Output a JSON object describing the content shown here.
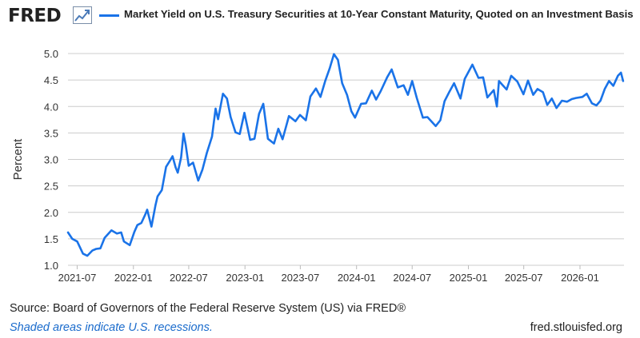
{
  "header": {
    "logo_text": "FRED",
    "logo_icon": "line-chart-icon",
    "legend_label": "Market Yield on U.S. Treasury Securities at 10-Year Constant Maturity, Quoted on an Investment Basis"
  },
  "colors": {
    "series": "#1a73e8",
    "grid": "#cccccc",
    "plot_background": "#ffffff",
    "recession_note": "#1a6bcc"
  },
  "footer": {
    "source_text": "Source: Board of Governors of the Federal Reserve System (US) via FRED®",
    "recession_note": "Shaded areas indicate U.S. recessions.",
    "site": "fred.stlouisfed.org"
  },
  "chart_data": {
    "type": "line",
    "title": "",
    "xlabel": "",
    "ylabel": "Percent",
    "xlim": [
      "2021-06-01",
      "2026-05-25"
    ],
    "ylim": [
      1.0,
      5.0
    ],
    "yticks": [
      1.0,
      1.5,
      2.0,
      2.5,
      3.0,
      3.5,
      4.0,
      4.5,
      5.0
    ],
    "ytick_labels": [
      "1.0",
      "1.5",
      "2.0",
      "2.5",
      "3.0",
      "3.5",
      "4.0",
      "4.5",
      "5.0"
    ],
    "xticks": [
      "2021-07-01",
      "2022-01-01",
      "2022-07-01",
      "2023-01-01",
      "2023-07-01",
      "2024-01-01",
      "2024-07-01",
      "2025-01-01",
      "2025-07-01",
      "2026-01-01"
    ],
    "xtick_labels": [
      "2021-07",
      "2022-01",
      "2022-07",
      "2023-01",
      "2023-07",
      "2024-01",
      "2024-07",
      "2025-01",
      "2025-07",
      "2026-01"
    ],
    "grid": true,
    "legend": "top",
    "series": [
      {
        "name": "Market Yield on U.S. Treasury Securities at 10-Year Constant Maturity, Quoted on an Investment Basis",
        "x": [
          "2021-06-01",
          "2021-06-15",
          "2021-07-01",
          "2021-07-20",
          "2021-08-03",
          "2021-08-20",
          "2021-09-01",
          "2021-09-15",
          "2021-09-29",
          "2021-10-21",
          "2021-11-08",
          "2021-11-22",
          "2021-12-01",
          "2021-12-20",
          "2022-01-04",
          "2022-01-14",
          "2022-01-27",
          "2022-02-08",
          "2022-02-15",
          "2022-03-01",
          "2022-03-14",
          "2022-03-21",
          "2022-04-04",
          "2022-04-18",
          "2022-05-02",
          "2022-05-09",
          "2022-05-19",
          "2022-05-26",
          "2022-06-06",
          "2022-06-14",
          "2022-06-21",
          "2022-07-01",
          "2022-07-15",
          "2022-08-01",
          "2022-08-15",
          "2022-08-29",
          "2022-09-15",
          "2022-09-27",
          "2022-10-05",
          "2022-10-21",
          "2022-11-03",
          "2022-11-15",
          "2022-12-01",
          "2022-12-15",
          "2022-12-30",
          "2023-01-18",
          "2023-02-01",
          "2023-02-16",
          "2023-03-02",
          "2023-03-17",
          "2023-04-06",
          "2023-04-20",
          "2023-05-04",
          "2023-05-25",
          "2023-06-15",
          "2023-06-30",
          "2023-07-19",
          "2023-08-03",
          "2023-08-21",
          "2023-09-05",
          "2023-09-21",
          "2023-10-05",
          "2023-10-19",
          "2023-11-01",
          "2023-11-15",
          "2023-12-01",
          "2023-12-15",
          "2023-12-27",
          "2024-01-16",
          "2024-02-01",
          "2024-02-20",
          "2024-03-05",
          "2024-03-20",
          "2024-04-10",
          "2024-04-25",
          "2024-05-15",
          "2024-06-03",
          "2024-06-17",
          "2024-07-01",
          "2024-07-16",
          "2024-08-05",
          "2024-08-20",
          "2024-09-16",
          "2024-10-01",
          "2024-10-15",
          "2024-10-31",
          "2024-11-15",
          "2024-12-06",
          "2024-12-20",
          "2025-01-14",
          "2025-02-03",
          "2025-02-18",
          "2025-03-04",
          "2025-03-25",
          "2025-04-04",
          "2025-04-11",
          "2025-04-22",
          "2025-05-06",
          "2025-05-21",
          "2025-06-10",
          "2025-06-30",
          "2025-07-15",
          "2025-08-01",
          "2025-08-15",
          "2025-09-02",
          "2025-09-16",
          "2025-10-01",
          "2025-10-16",
          "2025-11-03",
          "2025-11-20",
          "2025-12-05",
          "2025-12-19",
          "2026-01-09",
          "2026-01-23",
          "2026-02-09",
          "2026-02-24",
          "2026-03-09",
          "2026-03-23",
          "2026-04-06",
          "2026-04-20",
          "2026-05-05",
          "2026-05-15",
          "2026-05-22"
        ],
        "y": [
          1.62,
          1.5,
          1.45,
          1.22,
          1.18,
          1.28,
          1.31,
          1.32,
          1.52,
          1.66,
          1.6,
          1.62,
          1.45,
          1.38,
          1.63,
          1.76,
          1.8,
          1.95,
          2.05,
          1.73,
          2.13,
          2.3,
          2.42,
          2.86,
          2.99,
          3.06,
          2.85,
          2.75,
          3.04,
          3.49,
          3.28,
          2.88,
          2.94,
          2.6,
          2.81,
          3.12,
          3.43,
          3.96,
          3.76,
          4.24,
          4.15,
          3.8,
          3.51,
          3.48,
          3.88,
          3.37,
          3.39,
          3.86,
          4.05,
          3.39,
          3.3,
          3.58,
          3.38,
          3.82,
          3.72,
          3.84,
          3.74,
          4.19,
          4.34,
          4.18,
          4.49,
          4.72,
          4.99,
          4.88,
          4.44,
          4.22,
          3.91,
          3.79,
          4.05,
          4.06,
          4.3,
          4.13,
          4.29,
          4.55,
          4.7,
          4.36,
          4.4,
          4.22,
          4.48,
          4.16,
          3.79,
          3.8,
          3.63,
          3.74,
          4.1,
          4.28,
          4.44,
          4.15,
          4.52,
          4.79,
          4.54,
          4.55,
          4.17,
          4.31,
          4.0,
          4.48,
          4.41,
          4.32,
          4.58,
          4.47,
          4.23,
          4.49,
          4.22,
          4.33,
          4.27,
          4.03,
          4.15,
          3.97,
          4.11,
          4.09,
          4.14,
          4.16,
          4.18,
          4.24,
          4.06,
          4.02,
          4.11,
          4.33,
          4.48,
          4.39,
          4.58,
          4.64,
          4.48
        ]
      }
    ]
  }
}
